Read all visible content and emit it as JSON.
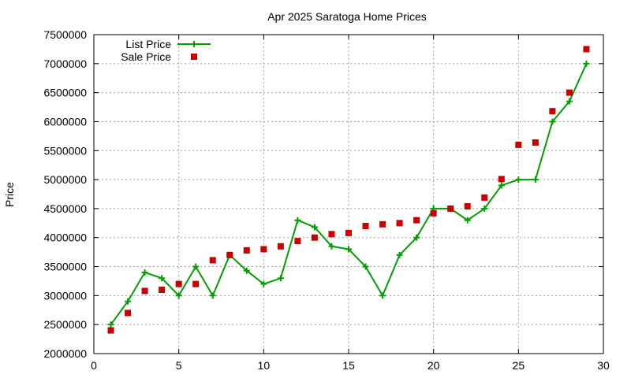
{
  "chart_data": {
    "type": "line",
    "title": "Apr 2025 Saratoga Home Prices",
    "xlabel": "",
    "ylabel": "Price",
    "xlim": [
      0,
      30
    ],
    "ylim": [
      2000000,
      7500000
    ],
    "x_ticks": [
      "0",
      "5",
      "10",
      "15",
      "20",
      "25",
      "30"
    ],
    "y_ticks": [
      "2000000",
      "2500000",
      "3000000",
      "3500000",
      "4000000",
      "4500000",
      "5000000",
      "5500000",
      "6000000",
      "6500000",
      "7000000",
      "7500000"
    ],
    "grid": true,
    "legend_position": "top-left",
    "x": [
      1,
      2,
      3,
      4,
      5,
      6,
      7,
      8,
      9,
      10,
      11,
      12,
      13,
      14,
      15,
      16,
      17,
      18,
      19,
      20,
      21,
      22,
      23,
      24,
      25,
      26,
      27,
      28,
      29
    ],
    "series": [
      {
        "name": "List Price",
        "style": "line-cross",
        "color": "#00a000",
        "values": [
          2500000,
          2900000,
          3400000,
          3300000,
          3000000,
          3500000,
          3000000,
          3700000,
          3430000,
          3200000,
          3300000,
          4300000,
          4180000,
          3850000,
          3800000,
          3500000,
          3000000,
          3700000,
          4000000,
          4500000,
          4500000,
          4300000,
          4500000,
          4900000,
          5000000,
          5000000,
          6000000,
          6350000,
          7000000
        ]
      },
      {
        "name": "Sale Price",
        "style": "square",
        "color": "#c80000",
        "values": [
          2400000,
          2700000,
          3080000,
          3100000,
          3200000,
          3200000,
          3610000,
          3700000,
          3780000,
          3800000,
          3850000,
          3940000,
          4000000,
          4060000,
          4080000,
          4200000,
          4230000,
          4250000,
          4300000,
          4420000,
          4500000,
          4540000,
          4690000,
          5010000,
          5600000,
          5640000,
          6180000,
          6500000,
          7250000
        ]
      }
    ]
  }
}
